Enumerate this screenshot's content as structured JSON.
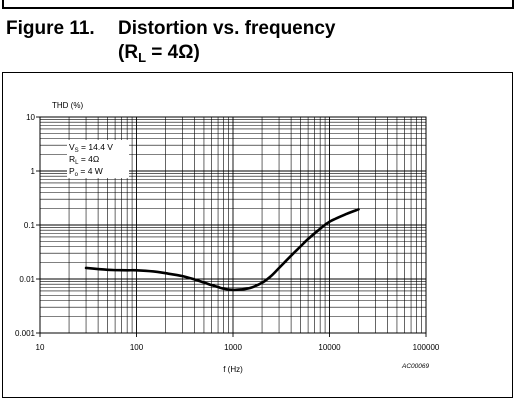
{
  "figure": {
    "number": "Figure 11.",
    "title": "Distortion vs. frequency",
    "subtitle_prefix": "(R",
    "subtitle_sub": "L",
    "subtitle_suffix": " = 4Ω)"
  },
  "chart_data": {
    "type": "line",
    "xscale": "log",
    "yscale": "log",
    "xlim": [
      10,
      100000
    ],
    "ylim": [
      0.001,
      10
    ],
    "ylabel": "THD (%)",
    "xlabel": "f (Hz)",
    "x_ticks": [
      "10",
      "100",
      "1000",
      "10000",
      "100000"
    ],
    "y_ticks": [
      "0.001",
      "0.01",
      "0.1",
      "1",
      "10"
    ],
    "grid": true,
    "code": "AC00069",
    "conditions": {
      "vs": {
        "pre": "V",
        "sub": "S",
        "post": " = 14.4 V"
      },
      "rl": {
        "pre": "R",
        "sub": "L",
        "post": " = 4Ω"
      },
      "po": {
        "pre": "P",
        "sub": "o",
        "post": " = 4 W"
      }
    },
    "series": [
      {
        "x": [
          30,
          40,
          50,
          60,
          80,
          100,
          150,
          200,
          300,
          400,
          500,
          600,
          700,
          800,
          1000,
          1200,
          1500,
          2000,
          2500,
          3000,
          4000,
          5000,
          6000,
          8000,
          10000,
          15000,
          20000
        ],
        "y": [
          0.016,
          0.0153,
          0.0148,
          0.0146,
          0.0145,
          0.0145,
          0.0138,
          0.0128,
          0.0113,
          0.0098,
          0.0086,
          0.0077,
          0.0071,
          0.0066,
          0.0063,
          0.0064,
          0.0068,
          0.0085,
          0.0115,
          0.016,
          0.027,
          0.04,
          0.055,
          0.085,
          0.115,
          0.16,
          0.195
        ]
      }
    ]
  }
}
